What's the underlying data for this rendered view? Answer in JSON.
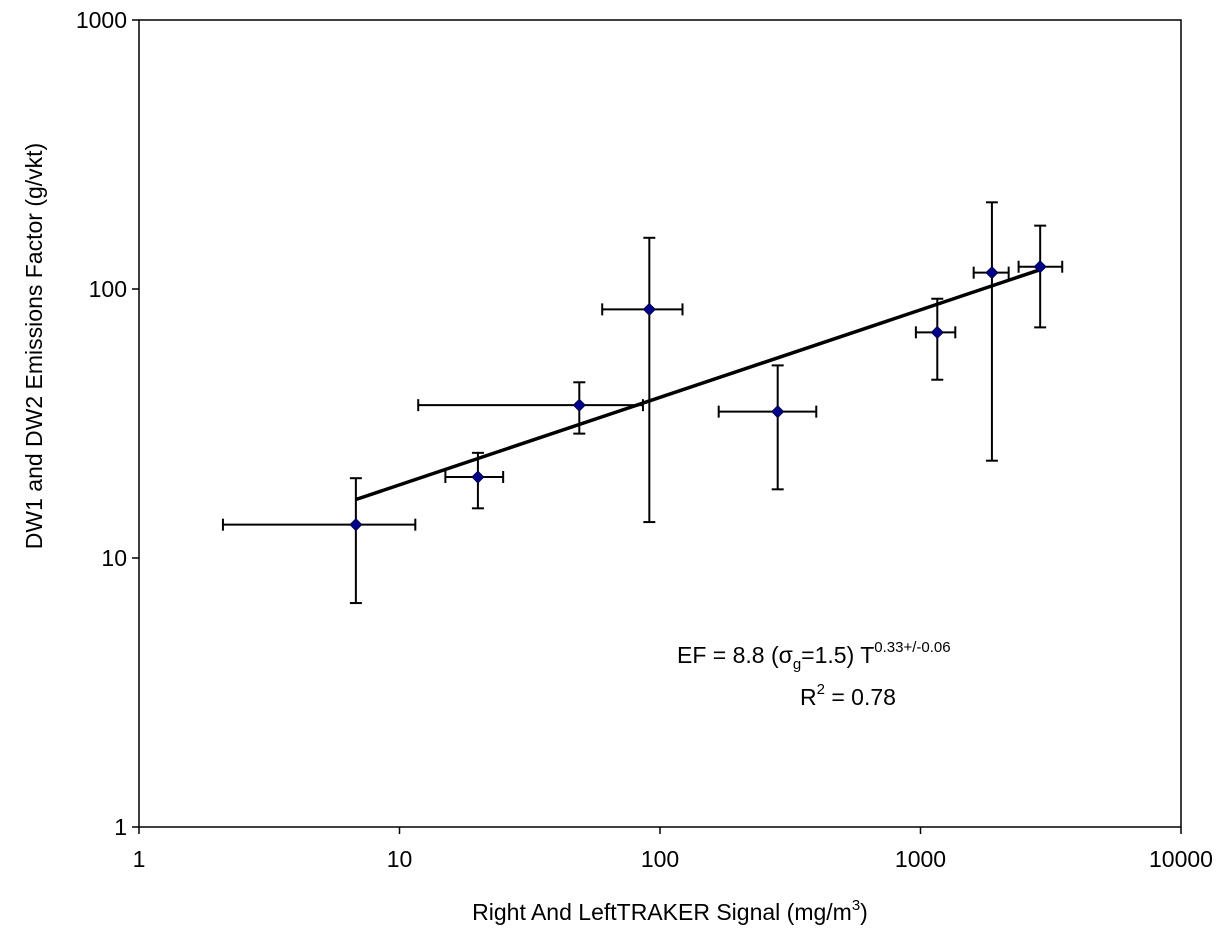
{
  "chart_data": {
    "type": "scatter",
    "title": "",
    "xlabel": {
      "main": "Right And LeftTRAKER Signal (mg/m",
      "sup": "3",
      "tail": ")"
    },
    "ylabel": "DW1 and DW2 Emissions Factor (g/vkt)",
    "x_scale": "log",
    "y_scale": "log",
    "xlim": [
      1,
      10000
    ],
    "ylim": [
      1,
      1000
    ],
    "x_ticks": [
      1,
      10,
      100,
      1000,
      10000
    ],
    "y_ticks": [
      1,
      10,
      100,
      1000
    ],
    "x_tick_labels": [
      "1",
      "10",
      "100",
      "1000",
      "10000"
    ],
    "y_tick_labels": [
      "1",
      "10",
      "100",
      "1000"
    ],
    "grid": false,
    "legend": "none",
    "marker_color": "#00008B",
    "points": [
      {
        "x": 6.8,
        "y": 13.3,
        "x_lo": 2.1,
        "x_hi": 11.5,
        "y_lo": 6.8,
        "y_hi": 19.8
      },
      {
        "x": 20,
        "y": 20,
        "x_lo": 15,
        "x_hi": 25,
        "y_lo": 15.3,
        "y_hi": 24.6
      },
      {
        "x": 49,
        "y": 37,
        "x_lo": 11.8,
        "x_hi": 86,
        "y_lo": 29,
        "y_hi": 45
      },
      {
        "x": 91,
        "y": 84,
        "x_lo": 60,
        "x_hi": 122,
        "y_lo": 13.6,
        "y_hi": 155
      },
      {
        "x": 283,
        "y": 35,
        "x_lo": 168,
        "x_hi": 398,
        "y_lo": 18,
        "y_hi": 52
      },
      {
        "x": 1160,
        "y": 69,
        "x_lo": 960,
        "x_hi": 1360,
        "y_lo": 46,
        "y_hi": 92
      },
      {
        "x": 1880,
        "y": 115,
        "x_lo": 1600,
        "x_hi": 2180,
        "y_lo": 23,
        "y_hi": 210
      },
      {
        "x": 2880,
        "y": 121,
        "x_lo": 2380,
        "x_hi": 3500,
        "y_lo": 72,
        "y_hi": 172
      }
    ],
    "fit_line": {
      "x": [
        6.8,
        2880
      ],
      "y": [
        16.5,
        118
      ]
    },
    "annotation": {
      "eq_prefix": "EF = 8.8 (",
      "sigma": "σ",
      "sigma_sub": "g",
      "eq_mid": "=1.5) T",
      "eq_exp": "0.33+/-0.06",
      "r2_prefix": "R",
      "r2_sup": "2",
      "r2_suffix": " = 0.78"
    }
  }
}
